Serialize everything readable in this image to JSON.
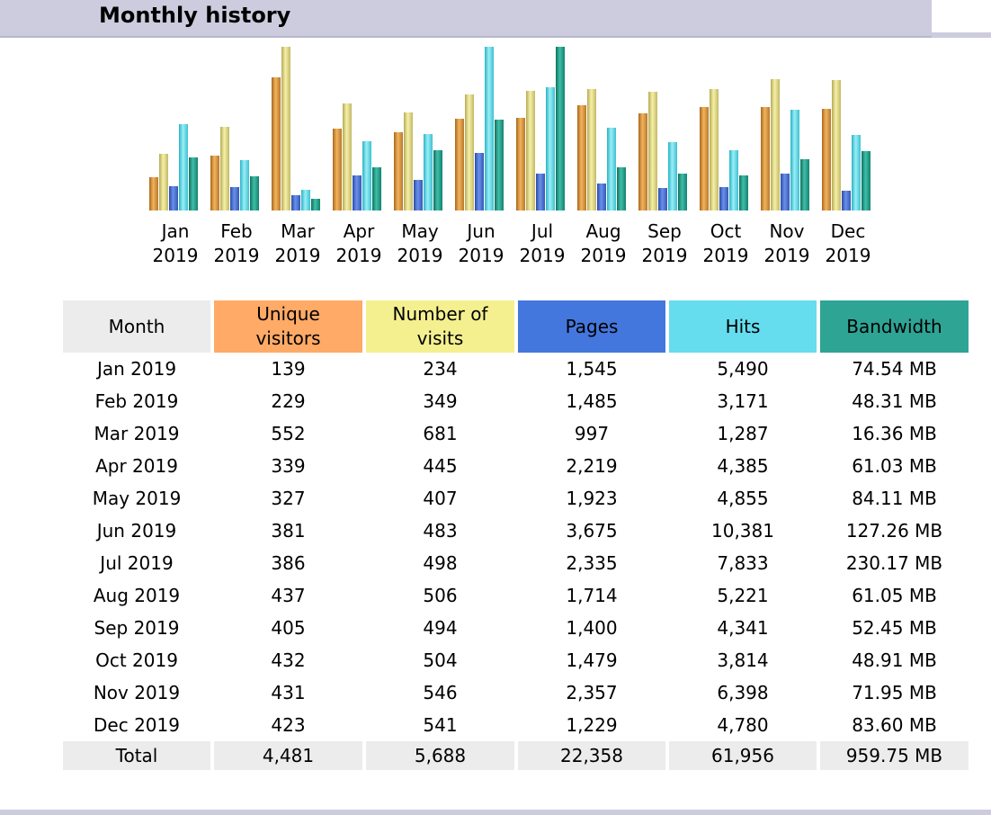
{
  "header": {
    "title": "Monthly history"
  },
  "colors": {
    "visitors": "#ffaa66",
    "visits": "#f4f090",
    "pages": "#4477dd",
    "hits": "#66ddee",
    "bandwidth": "#2ea495",
    "header_bg": "#ccccde"
  },
  "table": {
    "headers": {
      "month": "Month",
      "unique_visitors_1": "Unique",
      "unique_visitors_2": "visitors",
      "visits_1": "Number of",
      "visits_2": "visits",
      "pages": "Pages",
      "hits": "Hits",
      "bandwidth": "Bandwidth"
    },
    "rows": [
      [
        "Jan 2019",
        "139",
        "234",
        "1,545",
        "5,490",
        "74.54 MB"
      ],
      [
        "Feb 2019",
        "229",
        "349",
        "1,485",
        "3,171",
        "48.31 MB"
      ],
      [
        "Mar 2019",
        "552",
        "681",
        "997",
        "1,287",
        "16.36 MB"
      ],
      [
        "Apr 2019",
        "339",
        "445",
        "2,219",
        "4,385",
        "61.03 MB"
      ],
      [
        "May 2019",
        "327",
        "407",
        "1,923",
        "4,855",
        "84.11 MB"
      ],
      [
        "Jun 2019",
        "381",
        "483",
        "3,675",
        "10,381",
        "127.26 MB"
      ],
      [
        "Jul 2019",
        "386",
        "498",
        "2,335",
        "7,833",
        "230.17 MB"
      ],
      [
        "Aug 2019",
        "437",
        "506",
        "1,714",
        "5,221",
        "61.05 MB"
      ],
      [
        "Sep 2019",
        "405",
        "494",
        "1,400",
        "4,341",
        "52.45 MB"
      ],
      [
        "Oct 2019",
        "432",
        "504",
        "1,479",
        "3,814",
        "48.91 MB"
      ],
      [
        "Nov 2019",
        "431",
        "546",
        "2,357",
        "6,398",
        "71.95 MB"
      ],
      [
        "Dec 2019",
        "423",
        "541",
        "1,229",
        "4,780",
        "83.60 MB"
      ]
    ],
    "total": [
      "Total",
      "4,481",
      "5,688",
      "22,358",
      "61,956",
      "959.75 MB"
    ]
  },
  "chart_data": {
    "type": "bar",
    "categories": [
      {
        "month": "Jan",
        "year": "2019"
      },
      {
        "month": "Feb",
        "year": "2019"
      },
      {
        "month": "Mar",
        "year": "2019"
      },
      {
        "month": "Apr",
        "year": "2019"
      },
      {
        "month": "May",
        "year": "2019"
      },
      {
        "month": "Jun",
        "year": "2019"
      },
      {
        "month": "Jul",
        "year": "2019"
      },
      {
        "month": "Aug",
        "year": "2019"
      },
      {
        "month": "Sep",
        "year": "2019"
      },
      {
        "month": "Oct",
        "year": "2019"
      },
      {
        "month": "Nov",
        "year": "2019"
      },
      {
        "month": "Dec",
        "year": "2019"
      }
    ],
    "series": [
      {
        "key": "visitors",
        "values": [
          139,
          229,
          552,
          339,
          327,
          381,
          386,
          437,
          405,
          432,
          431,
          423
        ],
        "scale_max": 681
      },
      {
        "key": "visits",
        "values": [
          234,
          349,
          681,
          445,
          407,
          483,
          498,
          506,
          494,
          504,
          546,
          541
        ],
        "scale_max": 681
      },
      {
        "key": "pages",
        "values": [
          1545,
          1485,
          997,
          2219,
          1923,
          3675,
          2335,
          1714,
          1400,
          1479,
          2357,
          1229
        ],
        "scale_max": 10381
      },
      {
        "key": "hits",
        "values": [
          5490,
          3171,
          1287,
          4385,
          4855,
          10381,
          7833,
          5221,
          4341,
          3814,
          6398,
          4780
        ],
        "scale_max": 10381
      },
      {
        "key": "bandwidth",
        "values": [
          74.54,
          48.31,
          16.36,
          61.03,
          84.11,
          127.26,
          230.17,
          61.05,
          52.45,
          48.91,
          71.95,
          83.6
        ],
        "scale_max": 230.17
      }
    ],
    "title": "",
    "xlabel": "",
    "ylabel": ""
  }
}
